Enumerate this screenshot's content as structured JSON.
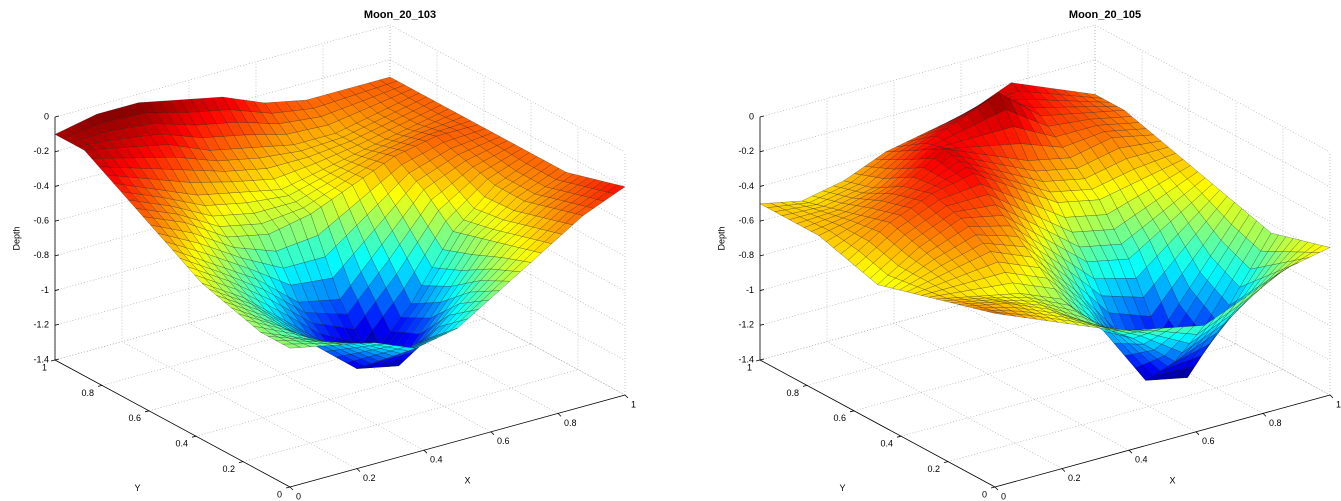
{
  "chart_data": [
    {
      "type": "surface",
      "title": "Moon_20_103",
      "xlabel": "X",
      "ylabel": "Y",
      "zlabel": "Depth",
      "x": [
        0,
        0.125,
        0.25,
        0.375,
        0.5,
        0.625,
        0.75,
        0.875,
        1
      ],
      "y": [
        0,
        0.125,
        0.25,
        0.375,
        0.5,
        0.625,
        0.75,
        0.875,
        1
      ],
      "z": [
        [
          -0.6,
          -0.65,
          -0.7,
          -0.8,
          -0.75,
          -0.6,
          -0.45,
          -0.3,
          -0.2
        ],
        [
          -0.6,
          -0.7,
          -0.8,
          -0.95,
          -0.9,
          -0.7,
          -0.5,
          -0.35,
          -0.25
        ],
        [
          -0.55,
          -0.7,
          -0.9,
          -1.1,
          -1.15,
          -0.85,
          -0.55,
          -0.4,
          -0.3
        ],
        [
          -0.5,
          -0.65,
          -0.85,
          -1.05,
          -1.2,
          -0.95,
          -0.6,
          -0.4,
          -0.3
        ],
        [
          -0.4,
          -0.55,
          -0.7,
          -0.9,
          -0.95,
          -0.7,
          -0.45,
          -0.35,
          -0.3
        ],
        [
          -0.3,
          -0.4,
          -0.55,
          -0.6,
          -0.55,
          -0.45,
          -0.35,
          -0.3,
          -0.3
        ],
        [
          -0.2,
          -0.3,
          -0.4,
          -0.45,
          -0.5,
          -0.45,
          -0.4,
          -0.35,
          -0.3
        ],
        [
          -0.1,
          -0.15,
          -0.2,
          -0.3,
          -0.35,
          -0.4,
          -0.4,
          -0.35,
          -0.3
        ],
        [
          -0.1,
          -0.05,
          -0.05,
          -0.1,
          -0.15,
          -0.25,
          -0.3,
          -0.3,
          -0.3
        ]
      ],
      "xlim": [
        0,
        1
      ],
      "ylim": [
        0,
        1
      ],
      "zlim": [
        -1.4,
        0
      ],
      "xticks": [
        0,
        0.2,
        0.4,
        0.6,
        0.8,
        1
      ],
      "yticks": [
        0,
        0.2,
        0.4,
        0.6,
        0.8,
        1
      ],
      "zticks": [
        0,
        -0.2,
        -0.4,
        -0.6,
        -0.8,
        -1,
        -1.2,
        -1.4
      ],
      "grid": true,
      "colormap": "jet"
    },
    {
      "type": "surface",
      "title": "Moon_20_105",
      "xlabel": "X",
      "ylabel": "Y",
      "zlabel": "Depth",
      "x": [
        0,
        0.125,
        0.25,
        0.375,
        0.5,
        0.625,
        0.75,
        0.875,
        1
      ],
      "y": [
        0,
        0.125,
        0.25,
        0.375,
        0.5,
        0.625,
        0.75,
        0.875,
        1
      ],
      "z": [
        [
          -0.4,
          -0.5,
          -0.6,
          -0.7,
          -0.75,
          -0.8,
          -0.7,
          -0.6,
          -0.55
        ],
        [
          -0.45,
          -0.5,
          -0.6,
          -0.75,
          -0.9,
          -1.1,
          -1.0,
          -0.8,
          -0.6
        ],
        [
          -0.5,
          -0.55,
          -0.6,
          -0.7,
          -0.95,
          -1.3,
          -1.35,
          -1.0,
          -0.65
        ],
        [
          -0.55,
          -0.5,
          -0.45,
          -0.55,
          -0.8,
          -1.1,
          -1.2,
          -0.9,
          -0.6
        ],
        [
          -0.6,
          -0.45,
          -0.35,
          -0.4,
          -0.6,
          -0.8,
          -0.85,
          -0.7,
          -0.55
        ],
        [
          -0.55,
          -0.4,
          -0.3,
          -0.25,
          -0.4,
          -0.55,
          -0.6,
          -0.55,
          -0.5
        ],
        [
          -0.5,
          -0.45,
          -0.35,
          -0.2,
          -0.3,
          -0.4,
          -0.45,
          -0.4,
          -0.45
        ],
        [
          -0.5,
          -0.5,
          -0.45,
          -0.3,
          -0.2,
          -0.1,
          -0.3,
          -0.35,
          -0.4
        ],
        [
          -0.5,
          -0.55,
          -0.5,
          -0.4,
          -0.35,
          -0.3,
          -0.2,
          -0.3,
          -0.4
        ]
      ],
      "xlim": [
        0,
        1
      ],
      "ylim": [
        0,
        1
      ],
      "zlim": [
        -1.4,
        0
      ],
      "xticks": [
        0,
        0.2,
        0.4,
        0.6,
        0.8,
        1
      ],
      "yticks": [
        0,
        0.2,
        0.4,
        0.6,
        0.8,
        1
      ],
      "zticks": [
        0,
        -0.2,
        -0.4,
        -0.6,
        -0.8,
        -1,
        -1.2,
        -1.4
      ],
      "grid": true,
      "colormap": "jet"
    }
  ]
}
